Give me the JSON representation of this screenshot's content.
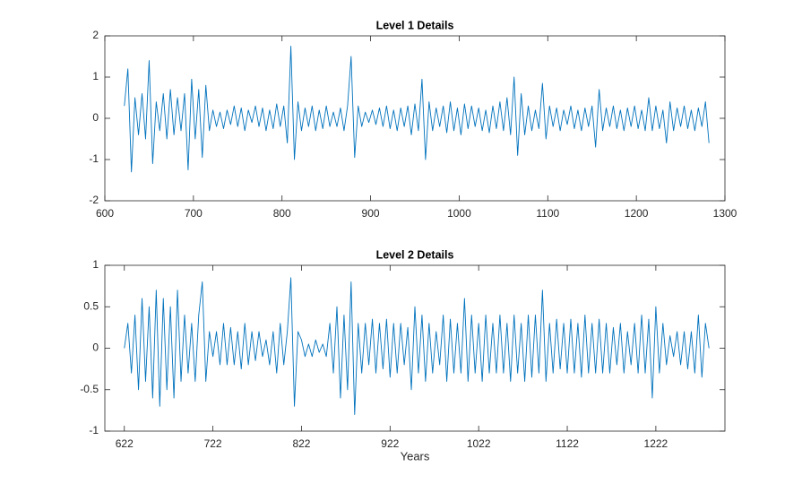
{
  "chart_data": [
    {
      "type": "line",
      "title": "Level 1 Details",
      "color": "#0072bd",
      "xlim": [
        600,
        1300
      ],
      "xticks": [
        600,
        700,
        800,
        900,
        1000,
        1100,
        1200,
        1300
      ],
      "ylim": [
        -2,
        2
      ],
      "yticks": [
        -2,
        -1,
        0,
        1,
        2
      ],
      "x": [
        622,
        626,
        630,
        634,
        638,
        642,
        646,
        650,
        654,
        658,
        662,
        666,
        670,
        674,
        678,
        682,
        686,
        690,
        694,
        698,
        702,
        706,
        710,
        714,
        718,
        722,
        726,
        730,
        734,
        738,
        742,
        746,
        750,
        754,
        758,
        762,
        766,
        770,
        774,
        778,
        782,
        786,
        790,
        794,
        798,
        802,
        806,
        810,
        814,
        818,
        822,
        826,
        830,
        834,
        838,
        842,
        846,
        850,
        854,
        858,
        862,
        866,
        870,
        874,
        878,
        882,
        886,
        890,
        894,
        898,
        902,
        906,
        910,
        914,
        918,
        922,
        926,
        930,
        934,
        938,
        942,
        946,
        950,
        954,
        958,
        962,
        966,
        970,
        974,
        978,
        982,
        986,
        990,
        994,
        998,
        1002,
        1006,
        1010,
        1014,
        1018,
        1022,
        1026,
        1030,
        1034,
        1038,
        1042,
        1046,
        1050,
        1054,
        1058,
        1062,
        1066,
        1070,
        1074,
        1078,
        1082,
        1086,
        1090,
        1094,
        1098,
        1102,
        1106,
        1110,
        1114,
        1118,
        1122,
        1126,
        1130,
        1134,
        1138,
        1142,
        1146,
        1150,
        1154,
        1158,
        1162,
        1166,
        1170,
        1174,
        1178,
        1182,
        1186,
        1190,
        1194,
        1198,
        1202,
        1206,
        1210,
        1214,
        1218,
        1222,
        1226,
        1230,
        1234,
        1238,
        1242,
        1246,
        1250,
        1254,
        1258,
        1262,
        1266,
        1270,
        1274,
        1278,
        1282
      ],
      "values": [
        0.3,
        1.2,
        -1.3,
        0.5,
        -0.4,
        0.6,
        -0.5,
        1.4,
        -1.1,
        0.4,
        -0.3,
        0.6,
        -0.5,
        0.7,
        -0.4,
        0.5,
        -0.3,
        0.6,
        -1.25,
        0.95,
        -0.5,
        0.7,
        -0.95,
        0.8,
        -0.3,
        0.2,
        -0.2,
        0.15,
        -0.25,
        0.2,
        -0.15,
        0.3,
        -0.2,
        0.25,
        -0.3,
        0.2,
        -0.1,
        0.3,
        -0.2,
        0.25,
        -0.3,
        0.2,
        -0.25,
        0.35,
        -0.2,
        0.3,
        -0.6,
        1.75,
        -1.0,
        0.4,
        -0.3,
        0.25,
        -0.2,
        0.3,
        -0.3,
        0.2,
        -0.25,
        0.3,
        -0.2,
        0.15,
        -0.2,
        0.25,
        -0.3,
        0.3,
        1.5,
        -0.95,
        0.3,
        -0.2,
        0.15,
        -0.1,
        0.2,
        -0.15,
        0.25,
        -0.2,
        0.3,
        -0.25,
        0.2,
        -0.3,
        0.25,
        -0.2,
        0.3,
        -0.4,
        0.35,
        -0.3,
        0.95,
        -1.0,
        0.4,
        -0.3,
        0.25,
        -0.2,
        0.3,
        -0.35,
        0.4,
        -0.3,
        0.25,
        -0.4,
        0.35,
        -0.25,
        0.3,
        -0.2,
        0.25,
        -0.3,
        0.2,
        -0.35,
        0.3,
        -0.25,
        0.4,
        -0.3,
        0.5,
        -0.4,
        1.0,
        -0.9,
        0.6,
        -0.4,
        0.3,
        -0.3,
        0.2,
        -0.25,
        0.85,
        -0.5,
        0.3,
        -0.2,
        0.25,
        -0.3,
        0.2,
        -0.15,
        0.3,
        -0.25,
        0.2,
        -0.3,
        0.25,
        -0.2,
        0.3,
        -0.7,
        0.7,
        -0.3,
        0.25,
        -0.2,
        0.3,
        -0.25,
        0.2,
        -0.3,
        0.25,
        -0.2,
        0.3,
        -0.25,
        0.2,
        -0.3,
        0.5,
        -0.3,
        0.3,
        -0.25,
        0.2,
        -0.6,
        0.4,
        -0.3,
        0.25,
        -0.2,
        0.3,
        -0.25,
        0.2,
        -0.3,
        0.25,
        -0.2,
        0.4,
        -0.6
      ]
    },
    {
      "type": "line",
      "title": "Level 2 Details",
      "xlabel": "Years",
      "color": "#0072bd",
      "xlim": [
        600,
        1300
      ],
      "xticks": [
        622,
        722,
        822,
        922,
        1022,
        1122,
        1222
      ],
      "ylim": [
        -1,
        1
      ],
      "yticks": [
        -1,
        -0.5,
        0,
        0.5,
        1
      ],
      "x": [
        622,
        626,
        630,
        634,
        638,
        642,
        646,
        650,
        654,
        658,
        662,
        666,
        670,
        674,
        678,
        682,
        686,
        690,
        694,
        698,
        702,
        706,
        710,
        714,
        718,
        722,
        726,
        730,
        734,
        738,
        742,
        746,
        750,
        754,
        758,
        762,
        766,
        770,
        774,
        778,
        782,
        786,
        790,
        794,
        798,
        802,
        806,
        810,
        814,
        818,
        822,
        826,
        830,
        834,
        838,
        842,
        846,
        850,
        854,
        858,
        862,
        866,
        870,
        874,
        878,
        882,
        886,
        890,
        894,
        898,
        902,
        906,
        910,
        914,
        918,
        922,
        926,
        930,
        934,
        938,
        942,
        946,
        950,
        954,
        958,
        962,
        966,
        970,
        974,
        978,
        982,
        986,
        990,
        994,
        998,
        1002,
        1006,
        1010,
        1014,
        1018,
        1022,
        1026,
        1030,
        1034,
        1038,
        1042,
        1046,
        1050,
        1054,
        1058,
        1062,
        1066,
        1070,
        1074,
        1078,
        1082,
        1086,
        1090,
        1094,
        1098,
        1102,
        1106,
        1110,
        1114,
        1118,
        1122,
        1126,
        1130,
        1134,
        1138,
        1142,
        1146,
        1150,
        1154,
        1158,
        1162,
        1166,
        1170,
        1174,
        1178,
        1182,
        1186,
        1190,
        1194,
        1198,
        1202,
        1206,
        1210,
        1214,
        1218,
        1222,
        1226,
        1230,
        1234,
        1238,
        1242,
        1246,
        1250,
        1254,
        1258,
        1262,
        1266,
        1270,
        1274,
        1278,
        1282
      ],
      "values": [
        0,
        0.3,
        -0.3,
        0.4,
        -0.5,
        0.6,
        -0.4,
        0.5,
        -0.6,
        0.7,
        -0.7,
        0.6,
        -0.5,
        0.5,
        -0.6,
        0.7,
        -0.4,
        0.4,
        -0.3,
        0.3,
        -0.4,
        0.4,
        0.8,
        -0.4,
        0.2,
        -0.1,
        0.2,
        -0.2,
        0.3,
        -0.2,
        0.25,
        -0.2,
        0.2,
        -0.25,
        0.3,
        -0.2,
        0.2,
        -0.15,
        0.2,
        -0.1,
        0.1,
        -0.2,
        0.2,
        -0.3,
        0.3,
        -0.2,
        0.2,
        0.85,
        -0.7,
        0.2,
        0.1,
        -0.1,
        0.05,
        -0.1,
        0.1,
        -0.05,
        0.05,
        -0.1,
        0.3,
        -0.3,
        0.5,
        -0.6,
        0.4,
        -0.5,
        0.8,
        -0.8,
        0.3,
        -0.3,
        0.3,
        -0.2,
        0.35,
        -0.3,
        0.3,
        -0.25,
        0.35,
        -0.35,
        0.3,
        -0.3,
        0.3,
        -0.2,
        0.25,
        -0.5,
        0.5,
        -0.3,
        0.4,
        -0.4,
        0.3,
        -0.3,
        0.2,
        -0.2,
        0.4,
        -0.4,
        0.35,
        -0.3,
        0.3,
        -0.3,
        0.6,
        -0.4,
        0.4,
        -0.3,
        0.3,
        -0.4,
        0.4,
        -0.3,
        0.3,
        -0.3,
        0.4,
        -0.3,
        0.3,
        -0.4,
        0.4,
        -0.3,
        0.3,
        -0.4,
        0.4,
        -0.35,
        0.4,
        -0.3,
        0.7,
        -0.4,
        0.3,
        -0.3,
        0.35,
        -0.25,
        0.3,
        -0.3,
        0.35,
        -0.3,
        0.3,
        -0.35,
        0.4,
        -0.3,
        0.3,
        -0.3,
        0.35,
        -0.3,
        0.3,
        -0.3,
        0.25,
        -0.2,
        0.3,
        -0.3,
        0.2,
        -0.2,
        0.3,
        -0.3,
        0.4,
        -0.3,
        0.35,
        -0.6,
        0.5,
        -0.3,
        0.3,
        -0.2,
        0.15,
        -0.1,
        0.2,
        -0.2,
        0.2,
        -0.25,
        0.2,
        -0.3,
        0.4,
        -0.35,
        0.3,
        0
      ]
    }
  ]
}
